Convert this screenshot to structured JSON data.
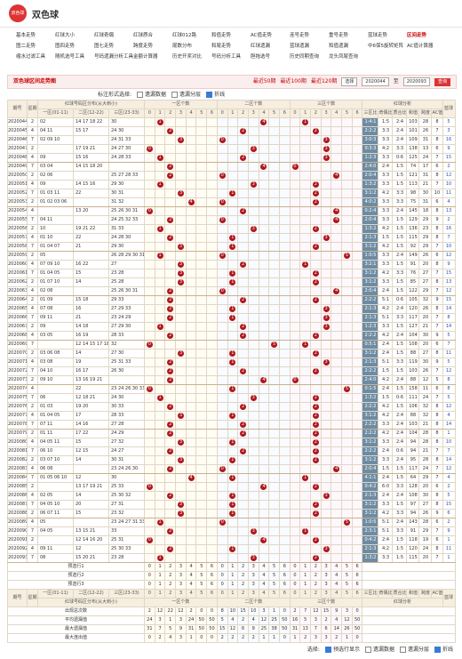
{
  "header": {
    "logo": "双色球",
    "title": "双色球"
  },
  "nav": [
    [
      "基本走势",
      "红球大小",
      "红球奇偶",
      "红球质合",
      "红球012路",
      "和值走势",
      "AC值走势",
      "连号走势",
      "重号走势",
      "蓝球走势",
      "区间走势"
    ],
    [
      "图二走势",
      "图四走势",
      "图七走势",
      "跨度走势",
      "尾数分布",
      "和尾走势",
      "红球遗漏",
      "蓝球遗漏",
      "和值遗漏",
      "中6保5旋转矩阵",
      "AC值计算器"
    ],
    [
      "缩水过滤工具",
      "随机选号工具",
      "号码遗漏分析工具",
      "金额计算器",
      "历史开奖对比",
      "号码分析工具",
      "胆拖选号",
      "历史同期查询",
      "龙头凤尾查询"
    ]
  ],
  "toolbar": {
    "title": "双色球区间走势图",
    "periods": [
      "最近50期",
      "最近100期",
      "最近120期"
    ],
    "select": "选择",
    "from": "2020044",
    "to_label": "至",
    "to": "2020093",
    "button": "查询"
  },
  "filter": {
    "label": "标注形式选择:",
    "options": [
      "遗漏数据",
      "遗漏分层",
      "折线"
    ]
  },
  "table": {
    "columns": {
      "issue": "期号",
      "week": "星期",
      "dist": "红球号码区分布(从大到小)",
      "zones": [
        "一区(01-11)",
        "二区(12-22)",
        "三区(23-33)"
      ],
      "counts": [
        "一区个数",
        "二区个数",
        "三区个数"
      ],
      "analysis": "红球分析",
      "stats": [
        "三区比",
        "奇偶比",
        "质合比",
        "和值",
        "跨度",
        "AC值"
      ],
      "blue": "蓝球"
    },
    "count_ticks": [
      0,
      1,
      2,
      3,
      4,
      5,
      6
    ],
    "rows": [
      [
        "2020044",
        2,
        "02",
        "14 17 18 22",
        "30",
        [
          1,
          4,
          1
        ],
        "1:4:1",
        "1:5",
        "2:4",
        103,
        28,
        8,
        5
      ],
      [
        "2020045",
        4,
        "04 11",
        "15 17",
        "24 30",
        [
          2,
          2,
          2
        ],
        "2:2:2",
        "3:3",
        "2:4",
        101,
        26,
        7,
        3
      ],
      [
        "2020046",
        7,
        "02 09 10",
        "",
        "24 31 33",
        [
          3,
          0,
          3
        ],
        "3:0:3",
        "3:3",
        "2:4",
        109,
        31,
        8,
        16
      ],
      [
        "2020047",
        2,
        "",
        "17 19 21",
        "24 27 30",
        [
          0,
          3,
          3
        ],
        "0:3:3",
        "4:2",
        "3:3",
        138,
        13,
        6,
        9
      ],
      [
        "2020048",
        4,
        "09",
        "15 16",
        "24 28 33",
        [
          1,
          2,
          3
        ],
        "1:2:3",
        "3:3",
        "0:6",
        125,
        24,
        7,
        15
      ],
      [
        "2020049",
        7,
        "03 04",
        "14 15 18 20",
        "",
        [
          2,
          4,
          0
        ],
        "2:4:0",
        "2:4",
        "1:5",
        74,
        17,
        6,
        2
      ],
      [
        "2020050",
        2,
        "02 06",
        "",
        "25 27 28 33",
        [
          2,
          0,
          4
        ],
        "2:0:4",
        "3:3",
        "1:5",
        121,
        31,
        8,
        12
      ],
      [
        "2020051",
        4,
        "09",
        "14 15 16",
        "29 30",
        [
          1,
          3,
          2
        ],
        "1:3:2",
        "3:3",
        "1:5",
        113,
        21,
        7,
        10
      ],
      [
        "2020052",
        7,
        "01 03 11",
        "22",
        "30 31",
        [
          3,
          1,
          2
        ],
        "3:1:2",
        "4:2",
        "3:3",
        98,
        30,
        10,
        11
      ],
      [
        "2020053",
        2,
        "01 02 03 06",
        "",
        "31 32",
        [
          4,
          0,
          2
        ],
        "4:0:2",
        "3:3",
        "3:3",
        75,
        31,
        6,
        4
      ],
      [
        "2020054",
        4,
        "",
        "13 20",
        "25 26 30 31",
        [
          0,
          2,
          4
        ],
        "0:2:4",
        "3:3",
        "2:4",
        145,
        18,
        8,
        13
      ],
      [
        "2020055",
        7,
        "04 11",
        "",
        "24 25 32 33",
        [
          2,
          0,
          4
        ],
        "2:0:4",
        "3:3",
        "1:5",
        129,
        29,
        9,
        2
      ],
      [
        "2020056",
        2,
        "10",
        "19 21 22",
        "31 33",
        [
          1,
          3,
          2
        ],
        "1:3:2",
        "4:2",
        "1:5",
        136,
        23,
        8,
        16
      ],
      [
        "2020057",
        4,
        "01 10",
        "22",
        "24 28 30",
        [
          2,
          1,
          3
        ],
        "2:1:3",
        "1:5",
        "1:5",
        115,
        29,
        8,
        7
      ],
      [
        "2020058",
        7,
        "01 04 07",
        "21",
        "29 30",
        [
          3,
          1,
          2
        ],
        "3:1:2",
        "4:2",
        "1:5",
        92,
        29,
        7,
        10
      ],
      [
        "2020059",
        2,
        "05",
        "",
        "26 28 29 30 31",
        [
          1,
          0,
          5
        ],
        "1:0:5",
        "3:3",
        "2:4",
        149,
        26,
        6,
        12
      ],
      [
        "2020060",
        4,
        "07 09 10",
        "16 22",
        "27",
        [
          3,
          2,
          1
        ],
        "3:2:1",
        "3:3",
        "1:5",
        91,
        20,
        8,
        9
      ],
      [
        "2020061",
        7,
        "01 04 05",
        "15",
        "23 28",
        [
          3,
          1,
          2
        ],
        "3:1:2",
        "4:2",
        "3:3",
        76,
        27,
        7,
        15
      ],
      [
        "2020062",
        2,
        "01 07 10",
        "14",
        "25 28",
        [
          3,
          1,
          2
        ],
        "3:1:2",
        "3:3",
        "1:5",
        85,
        27,
        8,
        13
      ],
      [
        "2020063",
        4,
        "02 08",
        "",
        "25 26 30 31",
        [
          2,
          0,
          4
        ],
        "2:0:4",
        "2:4",
        "1:5",
        122,
        29,
        7,
        12
      ],
      [
        "2020064",
        2,
        "01 09",
        "15 18",
        "29 33",
        [
          2,
          2,
          2
        ],
        "2:2:2",
        "5:1",
        "0:6",
        105,
        32,
        9,
        15
      ],
      [
        "2020065",
        4,
        "07 08",
        "16",
        "27 29 33",
        [
          2,
          1,
          3
        ],
        "2:1:3",
        "4:2",
        "2:4",
        120,
        26,
        8,
        14
      ],
      [
        "2020066",
        7,
        "09 11",
        "21",
        "23 24 29",
        [
          2,
          1,
          3
        ],
        "2:1:3",
        "5:1",
        "3:3",
        117,
        20,
        7,
        8
      ],
      [
        "2020067",
        2,
        "09",
        "14 18",
        "27 29 30",
        [
          1,
          2,
          3
        ],
        "1:2:3",
        "3:3",
        "1:5",
        127,
        21,
        7,
        14
      ],
      [
        "2020068",
        4,
        "03 05",
        "16 19",
        "28 33",
        [
          2,
          2,
          2
        ],
        "2:2:2",
        "4:2",
        "2:4",
        104,
        30,
        9,
        5
      ],
      [
        "2020069",
        7,
        "",
        "12 14 15 17 18",
        "32",
        [
          0,
          5,
          1
        ],
        "0:5:1",
        "2:4",
        "1:5",
        108,
        20,
        6,
        7
      ],
      [
        "2020070",
        2,
        "03 06 08",
        "14",
        "27 30",
        [
          3,
          1,
          2
        ],
        "3:1:2",
        "2:4",
        "1:5",
        88,
        27,
        8,
        11
      ],
      [
        "2020071",
        4,
        "03 08",
        "19",
        "25 31 33",
        [
          2,
          1,
          3
        ],
        "2:1:3",
        "5:1",
        "3:3",
        119,
        30,
        9,
        5
      ],
      [
        "2020072",
        7,
        "04 10",
        "16 17",
        "26 30",
        [
          2,
          2,
          2
        ],
        "2:2:2",
        "1:5",
        "1:5",
        103,
        26,
        7,
        12
      ],
      [
        "2020073",
        2,
        "09 10",
        "13 16 19 21",
        "",
        [
          2,
          4,
          0
        ],
        "2:4:0",
        "4:2",
        "2:4",
        88,
        12,
        5,
        8
      ],
      [
        "2020074",
        4,
        "",
        "22",
        "23 24 26 30 33",
        [
          0,
          1,
          5
        ],
        "0:1:5",
        "2:4",
        "1:5",
        158,
        11,
        6,
        8
      ],
      [
        "2020075",
        7,
        "06",
        "12 18 21",
        "24 30",
        [
          1,
          3,
          2
        ],
        "1:3:2",
        "1:5",
        "0:6",
        111,
        24,
        7,
        5
      ],
      [
        "2020076",
        2,
        "01 03",
        "19 20",
        "30 33",
        [
          2,
          2,
          2
        ],
        "2:2:2",
        "4:2",
        "1:5",
        106,
        32,
        8,
        12
      ],
      [
        "2020077",
        4,
        "01 04 05",
        "17",
        "28 33",
        [
          3,
          1,
          2
        ],
        "3:1:2",
        "4:2",
        "2:4",
        88,
        32,
        8,
        4
      ],
      [
        "2020078",
        7,
        "07 11",
        "14 16",
        "27 28",
        [
          2,
          2,
          2
        ],
        "2:2:2",
        "3:3",
        "2:4",
        103,
        21,
        8,
        14
      ],
      [
        "2020079",
        2,
        "01 11",
        "17 22",
        "24 29",
        [
          2,
          2,
          2
        ],
        "2:2:2",
        "4:2",
        "2:4",
        104,
        28,
        8,
        1
      ],
      [
        "2020080",
        4,
        "04 05 11",
        "15",
        "27 32",
        [
          3,
          1,
          2
        ],
        "3:1:2",
        "3:3",
        "2:4",
        94,
        28,
        8,
        10
      ],
      [
        "2020081",
        7,
        "06 10",
        "12 15",
        "24 27",
        [
          2,
          2,
          2
        ],
        "2:2:2",
        "2:4",
        "0:6",
        94,
        21,
        7,
        7
      ],
      [
        "2020082",
        2,
        "03 07 10",
        "14",
        "30 31",
        [
          3,
          1,
          2
        ],
        "3:1:2",
        "3:3",
        "2:4",
        95,
        28,
        8,
        14
      ],
      [
        "2020083",
        4,
        "06 08",
        "",
        "23 24 26 30",
        [
          2,
          0,
          4
        ],
        "2:0:4",
        "1:5",
        "1:5",
        117,
        24,
        7,
        12
      ],
      [
        "2020084",
        7,
        "01 05 06 10",
        "12",
        "30",
        [
          4,
          1,
          1
        ],
        "4:1:1",
        "2:4",
        "1:5",
        64,
        29,
        7,
        4
      ],
      [
        "2020085",
        2,
        "",
        "13 17 19 21",
        "25 33",
        [
          0,
          4,
          2
        ],
        "0:4:2",
        "6:0",
        "3:3",
        128,
        20,
        6,
        2
      ],
      [
        "2020086",
        4,
        "02 05",
        "14",
        "25 30 32",
        [
          2,
          1,
          3
        ],
        "2:1:3",
        "2:4",
        "2:4",
        108,
        30,
        8,
        5
      ],
      [
        "2020087",
        7,
        "04 05 10",
        "20",
        "27 31",
        [
          3,
          1,
          2
        ],
        "3:1:2",
        "3:3",
        "1:5",
        97,
        27,
        8,
        15
      ],
      [
        "2020088",
        2,
        "06 07 11",
        "15",
        "23 32",
        [
          3,
          1,
          2
        ],
        "3:1:2",
        "4:2",
        "3:3",
        94,
        26,
        9,
        6
      ],
      [
        "2020089",
        4,
        "05",
        "",
        "23 24 27 31 33",
        [
          1,
          0,
          5
        ],
        "1:0:5",
        "5:1",
        "2:4",
        143,
        28,
        6,
        2
      ],
      [
        "2020090",
        7,
        "04 05",
        "13 15 21",
        "33",
        [
          2,
          3,
          1
        ],
        "2:3:1",
        "5:1",
        "3:3",
        91,
        29,
        7,
        9
      ],
      [
        "2020091",
        2,
        "",
        "12 14 16 20",
        "25 31",
        [
          0,
          4,
          2
        ],
        "0:4:2",
        "2:4",
        "1:5",
        118,
        19,
        6,
        1
      ],
      [
        "2020092",
        4,
        "09 11",
        "12",
        "25 30 33",
        [
          2,
          1,
          3
        ],
        "2:1:3",
        "4:2",
        "1:5",
        120,
        24,
        8,
        11
      ],
      [
        "2020093",
        7,
        "08",
        "15 20 21",
        "23 28",
        [
          1,
          3,
          2
        ],
        "1:3:2",
        "3:3",
        "1:5",
        115,
        20,
        7,
        1
      ]
    ],
    "preselect": [
      "预选行1",
      "预选行2",
      "预选行3"
    ],
    "summary": [
      {
        "label": "出现总次数",
        "values": [
          2,
          12,
          22,
          12,
          2,
          0,
          0,
          8,
          10,
          15,
          10,
          3,
          1,
          0,
          2,
          7,
          12,
          15,
          9,
          3,
          0
        ]
      },
      {
        "label": "平均遗漏值",
        "values": [
          24,
          3,
          1,
          3,
          24,
          50,
          50,
          5,
          4,
          2,
          4,
          12,
          25,
          50,
          16,
          5,
          3,
          2,
          4,
          12,
          50
        ]
      },
      {
        "label": "最大遗漏值",
        "values": [
          31,
          7,
          5,
          9,
          31,
          50,
          50,
          15,
          12,
          6,
          9,
          25,
          38,
          50,
          31,
          13,
          7,
          6,
          14,
          26,
          50
        ]
      },
      {
        "label": "最大连出值",
        "values": [
          0,
          2,
          4,
          3,
          1,
          0,
          0,
          2,
          2,
          2,
          2,
          1,
          1,
          0,
          1,
          2,
          3,
          3,
          2,
          1,
          0
        ]
      }
    ]
  },
  "footer": {
    "label": "选择:",
    "options": [
      "预选行显示",
      "遗漏数据",
      "遗漏分层",
      "折线"
    ]
  }
}
